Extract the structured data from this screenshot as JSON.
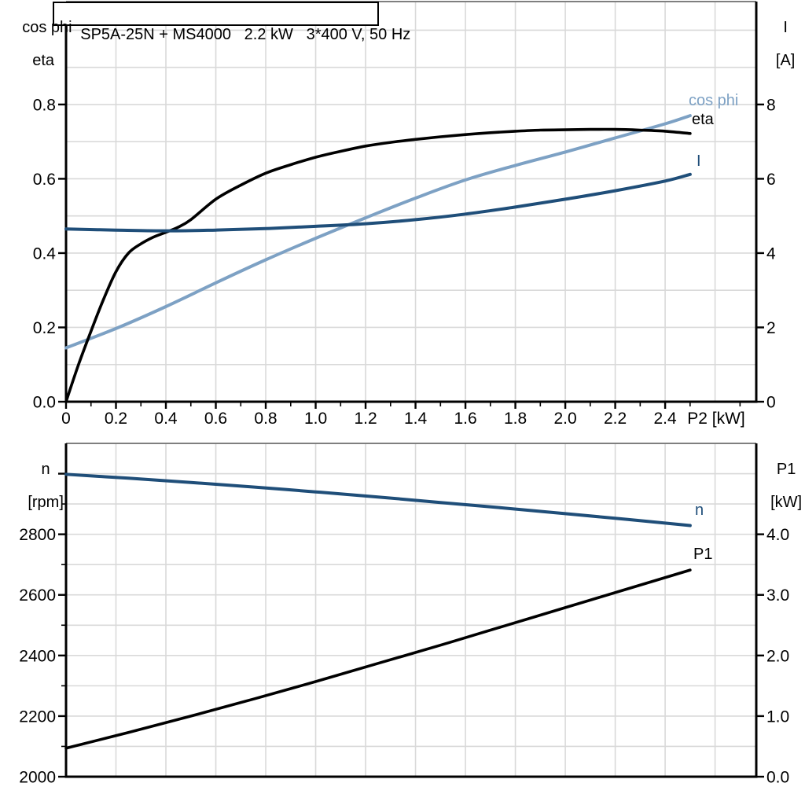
{
  "title": "SP5A-25N + MS4000   2.2 kW   3*400 V, 50 Hz",
  "colors": {
    "black": "#000000",
    "dark_blue": "#1f4e79",
    "light_blue": "#7da1c4",
    "grid": "#d9d9d9",
    "border_top": "#7f7f7f"
  },
  "chart_data": [
    {
      "type": "line",
      "title": "SP5A-25N + MS4000   2.2 kW   3*400 V, 50 Hz",
      "x_axis": {
        "label": "P2 [kW]",
        "tick_labels": [
          "0",
          "0.2",
          "0.4",
          "0.6",
          "0.8",
          "1.0",
          "1.2",
          "1.4",
          "1.6",
          "1.8",
          "2.0",
          "2.2",
          "2.4"
        ],
        "range": [
          0,
          2.765
        ],
        "grid_step": 0.2,
        "minor_tick_step": 0.1,
        "show_tick_labels": true
      },
      "left_axis": {
        "label_lines": [
          "cos phi",
          "eta"
        ],
        "tick_labels": [
          "0.0",
          "0.2",
          "0.4",
          "0.6",
          "0.8"
        ],
        "range": [
          0,
          1.077
        ],
        "grid_step": 0.1
      },
      "right_axis": {
        "label_lines": [
          "I",
          "[A]"
        ],
        "tick_labels": [
          "0",
          "2",
          "4",
          "6",
          "8"
        ],
        "range": [
          0,
          10.77
        ]
      },
      "grid": true,
      "legend_position": "curve-end-labels",
      "series": [
        {
          "name": "cos phi",
          "axis": "left",
          "color_key": "light_blue",
          "x": [
            0,
            0.2,
            0.4,
            0.6,
            0.8,
            1.0,
            1.2,
            1.4,
            1.6,
            1.8,
            2.0,
            2.2,
            2.4,
            2.5
          ],
          "y": [
            0.145,
            0.197,
            0.256,
            0.32,
            0.382,
            0.44,
            0.495,
            0.548,
            0.597,
            0.636,
            0.672,
            0.71,
            0.748,
            0.77
          ]
        },
        {
          "name": "eta",
          "axis": "left",
          "color_key": "black",
          "x": [
            0,
            0.05,
            0.1,
            0.15,
            0.2,
            0.25,
            0.3,
            0.35,
            0.4,
            0.45,
            0.5,
            0.6,
            0.7,
            0.8,
            0.9,
            1.0,
            1.1,
            1.2,
            1.3,
            1.4,
            1.5,
            1.6,
            1.7,
            1.8,
            1.9,
            2.0,
            2.1,
            2.2,
            2.3,
            2.4,
            2.5
          ],
          "y": [
            0,
            0.1,
            0.19,
            0.275,
            0.35,
            0.4,
            0.425,
            0.443,
            0.456,
            0.47,
            0.49,
            0.545,
            0.583,
            0.615,
            0.638,
            0.658,
            0.674,
            0.688,
            0.698,
            0.706,
            0.713,
            0.719,
            0.724,
            0.728,
            0.731,
            0.732,
            0.733,
            0.733,
            0.731,
            0.728,
            0.722
          ]
        },
        {
          "name": "I",
          "axis": "right",
          "color_key": "dark_blue",
          "x": [
            0,
            0.2,
            0.4,
            0.6,
            0.8,
            1.0,
            1.2,
            1.4,
            1.6,
            1.8,
            2.0,
            2.2,
            2.4,
            2.5
          ],
          "y": [
            4.65,
            4.62,
            4.6,
            4.62,
            4.66,
            4.72,
            4.79,
            4.9,
            5.05,
            5.24,
            5.45,
            5.68,
            5.94,
            6.12
          ]
        }
      ]
    },
    {
      "type": "line",
      "x_axis": {
        "label": "",
        "tick_labels": [],
        "range": [
          0,
          2.765
        ],
        "grid_step": 0.2,
        "minor_tick_step": null,
        "show_tick_labels": false
      },
      "left_axis": {
        "label_lines": [
          "n",
          "[rpm]"
        ],
        "tick_labels": [
          "2000",
          "2200",
          "2400",
          "2600",
          "2800"
        ],
        "range": [
          2000,
          3100
        ],
        "grid_step": 100,
        "extra_major_ticks": [
          3000
        ],
        "minor_ticks": true
      },
      "right_axis": {
        "label_lines": [
          "P1",
          "[kW]"
        ],
        "tick_labels": [
          "0.0",
          "1.0",
          "2.0",
          "3.0",
          "4.0"
        ],
        "range": [
          0,
          5.5
        ]
      },
      "grid": true,
      "legend_position": "curve-end-labels",
      "series": [
        {
          "name": "n",
          "axis": "left",
          "color_key": "dark_blue",
          "x": [
            0,
            0.25,
            0.5,
            0.75,
            1.0,
            1.25,
            1.5,
            1.75,
            2.0,
            2.25,
            2.5
          ],
          "y": [
            2998,
            2985,
            2971,
            2956,
            2940,
            2923,
            2905,
            2887,
            2868,
            2849,
            2829
          ]
        },
        {
          "name": "P1",
          "axis": "right",
          "color_key": "black",
          "x": [
            0,
            0.25,
            0.5,
            0.75,
            1.0,
            1.25,
            1.5,
            1.75,
            2.0,
            2.25,
            2.5
          ],
          "y": [
            0.47,
            0.73,
            1.0,
            1.28,
            1.57,
            1.87,
            2.17,
            2.48,
            2.79,
            3.1,
            3.41
          ]
        }
      ]
    }
  ]
}
